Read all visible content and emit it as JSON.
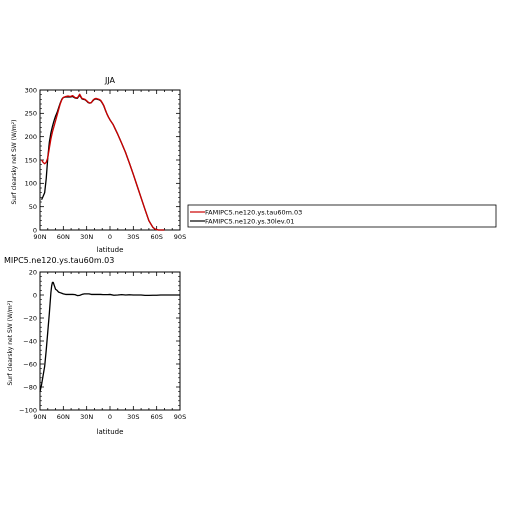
{
  "chart_data": [
    {
      "type": "line",
      "title": "JJA",
      "xlabel": "latitude",
      "ylabel": "Surf clearsky net SW (W/m²)",
      "xlim": [
        90,
        -90
      ],
      "ylim": [
        0,
        300
      ],
      "x_ticks": [
        "90N",
        "60N",
        "30N",
        "0",
        "30S",
        "60S",
        "90S"
      ],
      "y_ticks": [
        "0",
        "50",
        "100",
        "150",
        "200",
        "250",
        "300"
      ],
      "series": [
        {
          "name": "FAMIPC5.ne120.ys.tau60m.03",
          "color": "#cc0000",
          "x": [
            88,
            86,
            84,
            82,
            80,
            78,
            76,
            74,
            72,
            70,
            68,
            66,
            64,
            62,
            60,
            57,
            54,
            51,
            48,
            45,
            42,
            39,
            36,
            34,
            32,
            30,
            28,
            26,
            24,
            22,
            20,
            18,
            16,
            14,
            12,
            10,
            8,
            6,
            4,
            2,
            0,
            -2,
            -4,
            -6,
            -8,
            -10,
            -15,
            -20,
            -25,
            -30,
            -35,
            -40,
            -45,
            -50,
            -55,
            -58,
            -60,
            -62,
            -64,
            -66,
            -68,
            -70
          ],
          "y": [
            150,
            145,
            142,
            145,
            155,
            175,
            195,
            210,
            222,
            234,
            246,
            258,
            270,
            279,
            284,
            286,
            287,
            286,
            288,
            284,
            283,
            291,
            282,
            281,
            280,
            277,
            274,
            272,
            273,
            278,
            281,
            282,
            281,
            280,
            278,
            273,
            267,
            258,
            249,
            242,
            236,
            231,
            226,
            219,
            212,
            205,
            186,
            166,
            143,
            119,
            94,
            69,
            44,
            20,
            6,
            2,
            1,
            0,
            0,
            0,
            0,
            0
          ]
        },
        {
          "name": "FAMIPC5.ne120.ys.30lev.01",
          "color": "#000000",
          "x": [
            88,
            86,
            84,
            82,
            80,
            78,
            76,
            74,
            72,
            70,
            68,
            66,
            64,
            62,
            60,
            57,
            54,
            51,
            48,
            45,
            42,
            39,
            36,
            34,
            32,
            30,
            28,
            26,
            24,
            22,
            20,
            18,
            16,
            14,
            12,
            10,
            8,
            6,
            4,
            2,
            0,
            -2,
            -4,
            -6,
            -8,
            -10,
            -15,
            -20,
            -25,
            -30,
            -35,
            -40,
            -45,
            -50,
            -55,
            -58,
            -60,
            -62,
            -64,
            -66,
            -68,
            -70
          ],
          "y": [
            65,
            72,
            80,
            110,
            155,
            188,
            208,
            222,
            234,
            244,
            252,
            262,
            272,
            280,
            284,
            285,
            285,
            285,
            286,
            283,
            282,
            289,
            281,
            280,
            279,
            276,
            273,
            272,
            273,
            277,
            280,
            281,
            280,
            279,
            277,
            272,
            266,
            257,
            249,
            242,
            236,
            231,
            226,
            219,
            212,
            205,
            186,
            166,
            143,
            119,
            94,
            69,
            44,
            20,
            6,
            2,
            1,
            0,
            0,
            0,
            0,
            0
          ]
        }
      ],
      "legend": {
        "placement": "right",
        "entries": [
          "FAMIPC5.ne120.ys.tau60m.03",
          "FAMIPC5.ne120.ys.30lev.01"
        ]
      }
    },
    {
      "type": "line",
      "title": "MIPC5.ne120.ys.tau60m.03",
      "xlabel": "latitude",
      "ylabel": "Surf clearsky net SW (W/m²)",
      "xlim": [
        90,
        -90
      ],
      "ylim": [
        -100,
        20
      ],
      "x_ticks": [
        "90N",
        "60N",
        "30N",
        "0",
        "30S",
        "60S",
        "90S"
      ],
      "y_ticks": [
        "−100",
        "−80",
        "−60",
        "−40",
        "−20",
        "0",
        "20"
      ],
      "series": [
        {
          "color": "#000000",
          "x": [
            90,
            88,
            86,
            84,
            82,
            80,
            78,
            76,
            75,
            74,
            73,
            72,
            71,
            70,
            68,
            66,
            64,
            62,
            60,
            57,
            54,
            51,
            48,
            45,
            42,
            39,
            36,
            33,
            30,
            27,
            24,
            21,
            18,
            15,
            12,
            9,
            6,
            3,
            0,
            -5,
            -10,
            -15,
            -20,
            -25,
            -30,
            -35,
            -40,
            -45,
            -50,
            -55,
            -60,
            -65,
            -70,
            -75,
            -80,
            -85,
            -90
          ],
          "y": [
            -84,
            -78,
            -70,
            -62,
            -48,
            -32,
            -16,
            2,
            8,
            11,
            11,
            9,
            7,
            5,
            4,
            2.5,
            2,
            1.5,
            1,
            0.5,
            0.5,
            0.5,
            0.5,
            0.3,
            -0.5,
            -0.3,
            0.5,
            1,
            1,
            1,
            0.5,
            0.5,
            0.5,
            0.5,
            0.5,
            0.3,
            0.3,
            0.3,
            0.5,
            -0.2,
            0,
            0.3,
            0,
            0.2,
            0,
            0,
            0,
            -0.3,
            -0.3,
            -0.2,
            -0.2,
            0,
            0,
            0,
            0,
            0,
            0
          ]
        }
      ]
    }
  ]
}
